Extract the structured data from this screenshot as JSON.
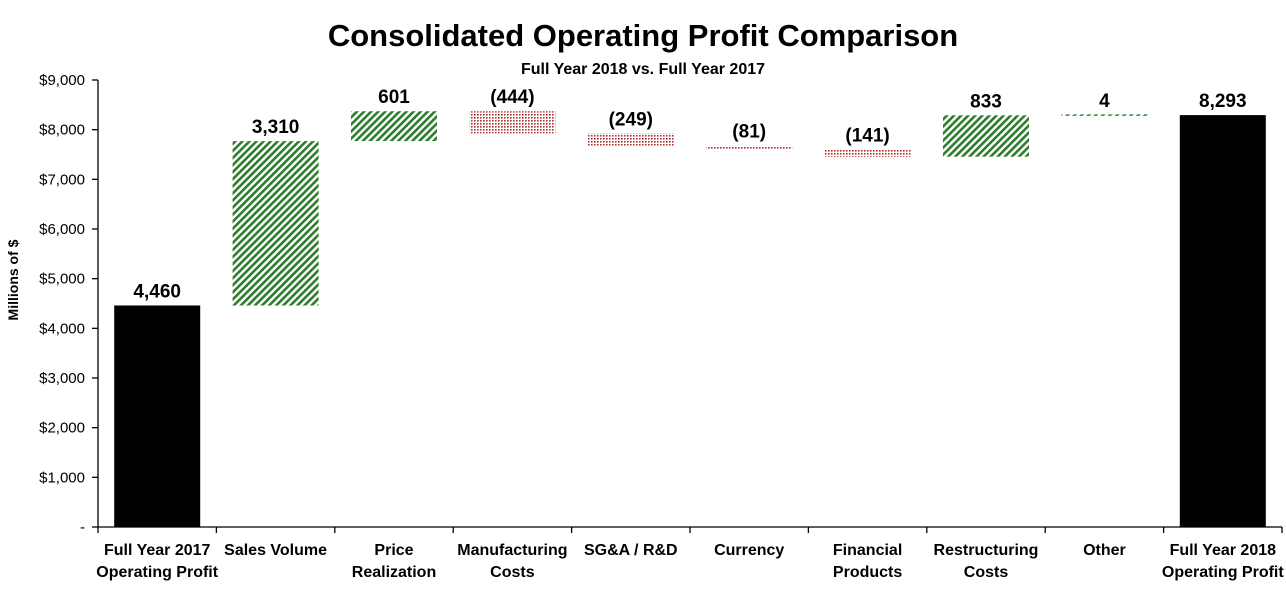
{
  "chart_data": {
    "type": "waterfall",
    "title": "Consolidated Operating Profit Comparison",
    "subtitle": "Full Year 2018 vs. Full Year 2017",
    "ylabel": "Millions of $",
    "ylim": [
      0,
      9000
    ],
    "yticks": [
      0,
      1000,
      2000,
      3000,
      4000,
      5000,
      6000,
      7000,
      8000,
      9000
    ],
    "ytick_labels": [
      "-",
      "$1,000",
      "$2,000",
      "$3,000",
      "$4,000",
      "$5,000",
      "$6,000",
      "$7,000",
      "$8,000",
      "$9,000"
    ],
    "grid": false,
    "colors": {
      "total": "#000000",
      "increase": "#2e7d2e",
      "decrease": "#b03030"
    },
    "categories": [
      {
        "label": [
          "Full Year 2017",
          "Operating Profit"
        ],
        "kind": "total",
        "value": 4460,
        "data_label": "4,460"
      },
      {
        "label": [
          "Sales Volume"
        ],
        "kind": "delta",
        "value": 3310,
        "data_label": "3,310"
      },
      {
        "label": [
          "Price",
          "Realization"
        ],
        "kind": "delta",
        "value": 601,
        "data_label": "601"
      },
      {
        "label": [
          "Manufacturing",
          "Costs"
        ],
        "kind": "delta",
        "value": -444,
        "data_label": "(444)"
      },
      {
        "label": [
          "SG&A / R&D"
        ],
        "kind": "delta",
        "value": -249,
        "data_label": "(249)"
      },
      {
        "label": [
          "Currency"
        ],
        "kind": "delta",
        "value": -81,
        "data_label": "(81)"
      },
      {
        "label": [
          "Financial",
          "Products"
        ],
        "kind": "delta",
        "value": -141,
        "data_label": "(141)"
      },
      {
        "label": [
          "Restructuring",
          "Costs"
        ],
        "kind": "delta",
        "value": 833,
        "data_label": "833"
      },
      {
        "label": [
          "Other"
        ],
        "kind": "delta",
        "value": 4,
        "data_label": "4"
      },
      {
        "label": [
          "Full Year 2018",
          "Operating Profit"
        ],
        "kind": "total",
        "value": 8293,
        "data_label": "8,293"
      }
    ]
  }
}
